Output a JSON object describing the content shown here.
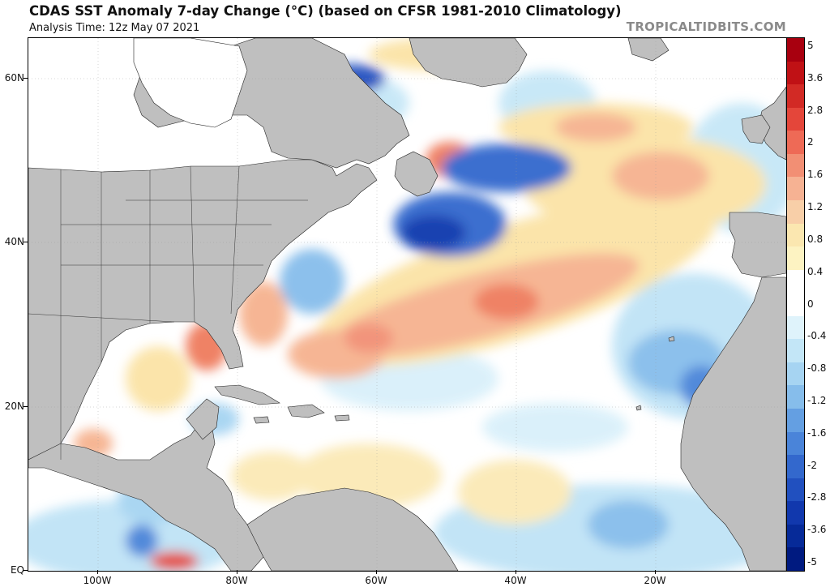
{
  "title": "CDAS SST Anomaly 7-day Change (°C) (based on CFSR 1981-2010 Climatology)",
  "subtitle": "Analysis Time: 12z May 07 2021",
  "brand": "TROPICALTIDBITS.COM",
  "axes": {
    "lat_labels": [
      "60N",
      "40N",
      "20N",
      "EQ"
    ],
    "lon_labels": [
      "100W",
      "80W",
      "60W",
      "40W",
      "20W"
    ]
  },
  "colorbar": {
    "labels": [
      "5",
      "3.6",
      "2.8",
      "2",
      "1.6",
      "1.2",
      "0.8",
      "0.4",
      "0",
      "-0.4",
      "-0.8",
      "-1.2",
      "-1.6",
      "-2",
      "-2.8",
      "-3.6",
      "-5"
    ],
    "colors": [
      "#a8000f",
      "#c01115",
      "#d22a25",
      "#e4463a",
      "#ee6a56",
      "#f28f74",
      "#f6b293",
      "#f8cfa8",
      "#fbe7b0",
      "#fdf3c2",
      "#ffffff",
      "#ffffff",
      "#dff3fb",
      "#c3e6f7",
      "#a6d4f2",
      "#86bdeb",
      "#649fe2",
      "#4a84d9",
      "#3368cd",
      "#2150bf",
      "#1138ad",
      "#062a98",
      "#001a80"
    ]
  },
  "map": {
    "land_color": "#bfbfbf",
    "border_color": "#222222",
    "warm_color": "#f3a57c",
    "cool_color": "#4b87d8"
  }
}
